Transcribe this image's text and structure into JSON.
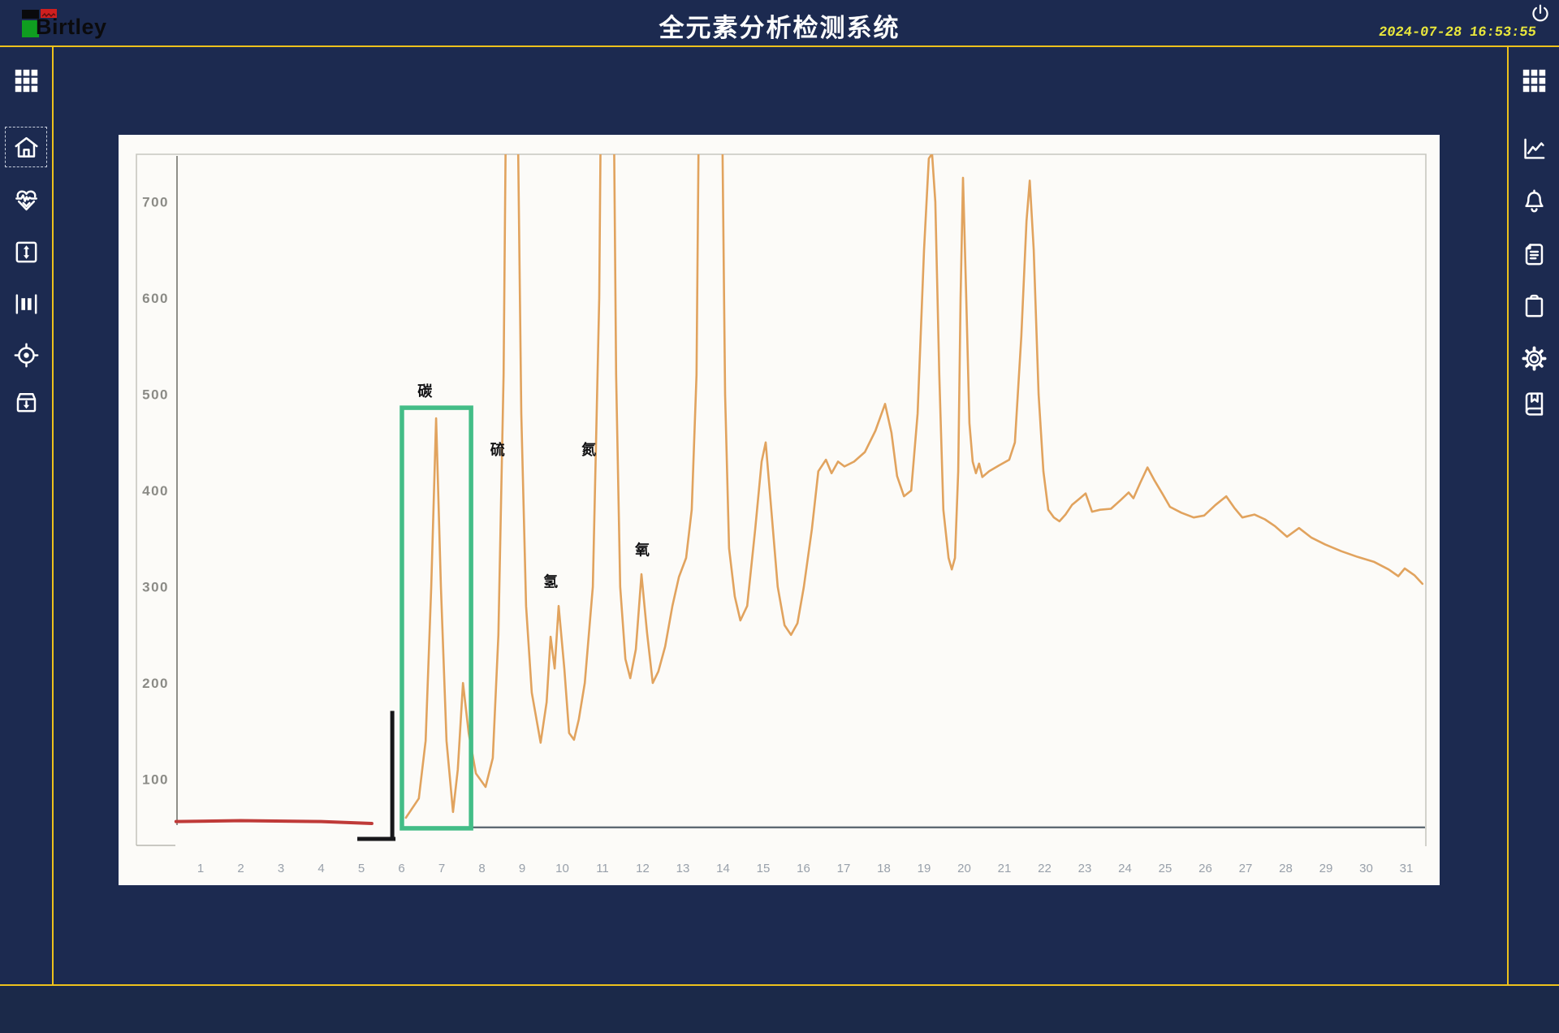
{
  "header": {
    "logo_text": "Birtley",
    "title": "全元素分析检测系统",
    "date": "2024-07-28",
    "time": "16:53:55"
  },
  "colors": {
    "background": "#1c2a50",
    "accent_gold": "#edc11c",
    "panel_white": "#fcfbf8",
    "timestamp_yellow": "#e9e73c",
    "curve_orange": "#e1a35e",
    "baseline_red": "#bf3a38",
    "baseline_gray": "#5f6a74",
    "highlight_green": "#43bd87",
    "title_white": "#fdfdfd"
  },
  "left_sidebar": {
    "items": [
      {
        "icon": "grid-icon"
      },
      {
        "icon": "home-icon",
        "selected": true
      },
      {
        "icon": "heart-pulse-icon"
      },
      {
        "icon": "vertical-range-icon"
      },
      {
        "icon": "width-bars-icon"
      },
      {
        "icon": "target-icon"
      },
      {
        "icon": "inbox-download-icon"
      }
    ]
  },
  "right_sidebar": {
    "items": [
      {
        "icon": "grid-icon"
      },
      {
        "icon": "line-chart-icon"
      },
      {
        "icon": "bell-icon"
      },
      {
        "icon": "report-icon"
      },
      {
        "icon": "clipboard-icon"
      },
      {
        "icon": "gear-icon"
      },
      {
        "icon": "book-icon"
      }
    ]
  },
  "chart_data": {
    "type": "line",
    "title": "",
    "xlabel": "",
    "ylabel": "",
    "x_ticks": [
      1,
      2,
      3,
      4,
      5,
      6,
      7,
      8,
      9,
      10,
      11,
      12,
      13,
      14,
      15,
      16,
      17,
      18,
      19,
      20,
      21,
      22,
      23,
      24,
      25,
      26,
      27,
      28,
      29,
      30,
      31
    ],
    "y_ticks": [
      100,
      200,
      300,
      400,
      500,
      600,
      700
    ],
    "ylim": [
      0,
      750
    ],
    "grid": false,
    "legend": "none",
    "note": "scanned chromatogram; peaks above 750 are clipped at the plot top",
    "annotations": [
      {
        "text": "碳",
        "element": "Carbon",
        "u": 6.58,
        "v": 498
      },
      {
        "text": "硫",
        "element": "Sulfur",
        "u": 8.39,
        "v": 437
      },
      {
        "text": "氮",
        "element": "Nitrogen",
        "u": 10.66,
        "v": 437
      },
      {
        "text": "氢",
        "element": "Hydrogen",
        "u": 9.71,
        "v": 300
      },
      {
        "text": "氧",
        "element": "Oxygen",
        "u": 11.99,
        "v": 333
      }
    ],
    "highlight_box": {
      "u1": 6.01,
      "u2": 7.73,
      "v1": 49,
      "v2": 486,
      "color": "#43bd87"
    },
    "bracket": {
      "x_u": 5.77,
      "v_top": 171,
      "v_bottom": 38,
      "h_u1": 4.9,
      "h_u2": 5.85,
      "color": "#17171a"
    },
    "series": [
      {
        "name": "baseline-gray",
        "color": "#5f6a74",
        "width": 2.4,
        "points": [
          [
            6.0,
            50
          ],
          [
            31.45,
            50
          ]
        ]
      },
      {
        "name": "baseline-red",
        "color": "#bf3a38",
        "width": 4,
        "points": [
          [
            0.39,
            56
          ],
          [
            2.0,
            57
          ],
          [
            4.0,
            56
          ],
          [
            5.26,
            54
          ]
        ]
      },
      {
        "name": "chromatogram",
        "color": "#e1a35e",
        "width": 2.6,
        "points": [
          [
            6.11,
            60
          ],
          [
            6.43,
            80
          ],
          [
            6.6,
            140
          ],
          [
            6.74,
            300
          ],
          [
            6.86,
            475
          ],
          [
            6.98,
            300
          ],
          [
            7.12,
            140
          ],
          [
            7.28,
            66
          ],
          [
            7.4,
            110
          ],
          [
            7.53,
            200
          ],
          [
            7.67,
            148
          ],
          [
            7.85,
            106
          ],
          [
            8.09,
            92
          ],
          [
            8.27,
            122
          ],
          [
            8.41,
            250
          ],
          [
            8.54,
            520
          ],
          [
            8.62,
            900
          ],
          [
            8.86,
            900
          ],
          [
            8.98,
            480
          ],
          [
            9.1,
            280
          ],
          [
            9.24,
            190
          ],
          [
            9.46,
            138
          ],
          [
            9.61,
            180
          ],
          [
            9.71,
            248
          ],
          [
            9.81,
            215
          ],
          [
            9.91,
            280
          ],
          [
            10.05,
            215
          ],
          [
            10.17,
            148
          ],
          [
            10.29,
            141
          ],
          [
            10.41,
            162
          ],
          [
            10.56,
            200
          ],
          [
            10.76,
            300
          ],
          [
            10.92,
            600
          ],
          [
            10.98,
            900
          ],
          [
            11.26,
            900
          ],
          [
            11.34,
            520
          ],
          [
            11.44,
            300
          ],
          [
            11.57,
            225
          ],
          [
            11.69,
            205
          ],
          [
            11.83,
            235
          ],
          [
            11.97,
            313
          ],
          [
            12.11,
            252
          ],
          [
            12.25,
            200
          ],
          [
            12.39,
            212
          ],
          [
            12.56,
            238
          ],
          [
            12.74,
            280
          ],
          [
            12.9,
            310
          ],
          [
            13.08,
            330
          ],
          [
            13.22,
            380
          ],
          [
            13.34,
            520
          ],
          [
            13.42,
            900
          ],
          [
            13.95,
            900
          ],
          [
            14.05,
            500
          ],
          [
            14.15,
            340
          ],
          [
            14.29,
            290
          ],
          [
            14.43,
            265
          ],
          [
            14.6,
            280
          ],
          [
            14.8,
            360
          ],
          [
            14.96,
            430
          ],
          [
            15.06,
            450
          ],
          [
            15.2,
            380
          ],
          [
            15.36,
            300
          ],
          [
            15.53,
            260
          ],
          [
            15.69,
            250
          ],
          [
            15.85,
            262
          ],
          [
            16.01,
            300
          ],
          [
            16.21,
            360
          ],
          [
            16.37,
            420
          ],
          [
            16.56,
            432
          ],
          [
            16.7,
            418
          ],
          [
            16.86,
            430
          ],
          [
            17.02,
            425
          ],
          [
            17.26,
            430
          ],
          [
            17.53,
            440
          ],
          [
            17.79,
            462
          ],
          [
            18.03,
            490
          ],
          [
            18.19,
            460
          ],
          [
            18.33,
            415
          ],
          [
            18.5,
            394
          ],
          [
            18.68,
            400
          ],
          [
            18.84,
            480
          ],
          [
            19.0,
            650
          ],
          [
            19.12,
            745
          ],
          [
            19.2,
            750
          ],
          [
            19.28,
            700
          ],
          [
            19.38,
            520
          ],
          [
            19.48,
            380
          ],
          [
            19.61,
            330
          ],
          [
            19.69,
            318
          ],
          [
            19.77,
            330
          ],
          [
            19.85,
            420
          ],
          [
            19.91,
            600
          ],
          [
            19.97,
            725
          ],
          [
            20.05,
            600
          ],
          [
            20.13,
            470
          ],
          [
            20.21,
            430
          ],
          [
            20.29,
            418
          ],
          [
            20.37,
            428
          ],
          [
            20.45,
            414
          ],
          [
            20.62,
            420
          ],
          [
            20.86,
            426
          ],
          [
            21.12,
            432
          ],
          [
            21.26,
            450
          ],
          [
            21.42,
            560
          ],
          [
            21.55,
            680
          ],
          [
            21.63,
            722
          ],
          [
            21.73,
            650
          ],
          [
            21.85,
            500
          ],
          [
            21.97,
            420
          ],
          [
            22.09,
            380
          ],
          [
            22.23,
            372
          ],
          [
            22.37,
            368
          ],
          [
            22.52,
            375
          ],
          [
            22.68,
            385
          ],
          [
            22.88,
            392
          ],
          [
            23.02,
            397
          ],
          [
            23.18,
            378
          ],
          [
            23.38,
            380
          ],
          [
            23.65,
            381
          ],
          [
            23.89,
            390
          ],
          [
            24.09,
            398
          ],
          [
            24.21,
            392
          ],
          [
            24.38,
            408
          ],
          [
            24.56,
            424
          ],
          [
            24.74,
            410
          ],
          [
            24.94,
            396
          ],
          [
            25.12,
            383
          ],
          [
            25.4,
            377
          ],
          [
            25.71,
            372
          ],
          [
            25.97,
            374
          ],
          [
            26.25,
            385
          ],
          [
            26.52,
            394
          ],
          [
            26.72,
            382
          ],
          [
            26.92,
            372
          ],
          [
            27.22,
            375
          ],
          [
            27.48,
            370
          ],
          [
            27.73,
            363
          ],
          [
            28.03,
            352
          ],
          [
            28.33,
            361
          ],
          [
            28.64,
            351
          ],
          [
            28.98,
            344
          ],
          [
            29.38,
            337
          ],
          [
            29.79,
            331
          ],
          [
            30.19,
            326
          ],
          [
            30.56,
            318
          ],
          [
            30.8,
            311
          ],
          [
            30.96,
            319
          ],
          [
            31.2,
            312
          ],
          [
            31.4,
            303
          ]
        ]
      }
    ]
  }
}
